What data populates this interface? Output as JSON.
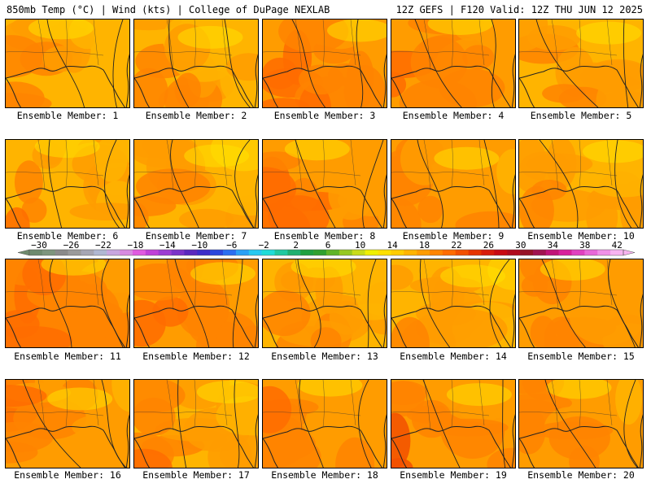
{
  "header": {
    "left": "850mb Temp (°C) | Wind (kts) | College of DuPage NEXLAB",
    "right": "12Z GEFS | F120 Valid: 12Z THU JUN 12 2025"
  },
  "members": [
    {
      "caption": "Ensemble Member: 1",
      "warmth": 0.35
    },
    {
      "caption": "Ensemble Member: 2",
      "warmth": 0.3
    },
    {
      "caption": "Ensemble Member: 3",
      "warmth": 0.65
    },
    {
      "caption": "Ensemble Member: 4",
      "warmth": 0.5
    },
    {
      "caption": "Ensemble Member: 5",
      "warmth": 0.35
    },
    {
      "caption": "Ensemble Member: 6",
      "warmth": 0.35
    },
    {
      "caption": "Ensemble Member: 7",
      "warmth": 0.3
    },
    {
      "caption": "Ensemble Member: 8",
      "warmth": 0.55
    },
    {
      "caption": "Ensemble Member: 9",
      "warmth": 0.45
    },
    {
      "caption": "Ensemble Member: 10",
      "warmth": 0.4
    },
    {
      "caption": "Ensemble Member: 11",
      "warmth": 0.7
    },
    {
      "caption": "Ensemble Member: 12",
      "warmth": 0.6
    },
    {
      "caption": "Ensemble Member: 13",
      "warmth": 0.35
    },
    {
      "caption": "Ensemble Member: 14",
      "warmth": 0.3
    },
    {
      "caption": "Ensemble Member: 15",
      "warmth": 0.55
    },
    {
      "caption": "Ensemble Member: 16",
      "warmth": 0.5
    },
    {
      "caption": "Ensemble Member: 17",
      "warmth": 0.4
    },
    {
      "caption": "Ensemble Member: 18",
      "warmth": 0.5
    },
    {
      "caption": "Ensemble Member: 19",
      "warmth": 0.65
    },
    {
      "caption": "Ensemble Member: 20",
      "warmth": 0.45
    }
  ],
  "colorbar": {
    "labels": [
      "−30",
      "−26",
      "−22",
      "−18",
      "−14",
      "−10",
      "−6",
      "−2",
      "2",
      "6",
      "10",
      "14",
      "18",
      "22",
      "26",
      "30",
      "34",
      "38",
      "42"
    ],
    "colors": [
      "#6e8a6e",
      "#7d957d",
      "#8a8a8a",
      "#9a9a9a",
      "#a6a6b4",
      "#b0b8d2",
      "#c8a6e0",
      "#d88ae0",
      "#e05ae0",
      "#c040d8",
      "#9d3cd2",
      "#7a32c8",
      "#5a28be",
      "#3c2cc8",
      "#2b46dc",
      "#2a6ef0",
      "#2aa0f5",
      "#28c8f0",
      "#20dcd8",
      "#20c8a0",
      "#20b070",
      "#20a040",
      "#30a030",
      "#60b428",
      "#96c820",
      "#c8dc18",
      "#f0f000",
      "#ffe000",
      "#ffcc00",
      "#ffb400",
      "#ff9c00",
      "#ff8400",
      "#ff6c00",
      "#f25000",
      "#e63400",
      "#d81c0c",
      "#c80a14",
      "#b00a1e",
      "#961428",
      "#a01450",
      "#c01478",
      "#d8209c",
      "#e040c0",
      "#e868d8",
      "#f090e8",
      "#f8b4f0"
    ]
  }
}
